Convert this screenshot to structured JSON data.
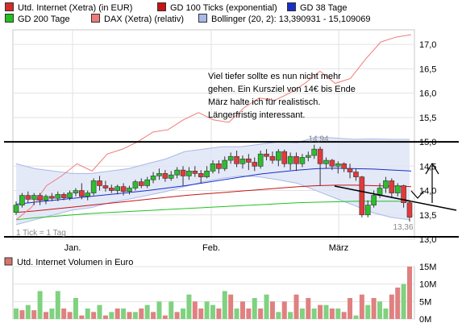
{
  "legend": [
    {
      "label": "Utd. Internet (Xetra) (in EUR)",
      "color": "#d42b2b"
    },
    {
      "label": "GD 100 Ticks (exponential)",
      "color": "#c81414"
    },
    {
      "label": "GD 38 Tage",
      "color": "#1a2fc8"
    },
    {
      "label": "GD 200 Tage",
      "color": "#22c022"
    },
    {
      "label": "DAX (Xetra) (relativ)",
      "color": "#f07a7a"
    },
    {
      "label": "Bollinger (20, 2): 13,390931 - 15,109069",
      "color": "#a9b8e8"
    }
  ],
  "annotation": "Viel tiefer sollte es nun nicht mehr gehen. Ein Kursziel von 14€ bis Ende März halte ich für realistisch. Längerfristig interessant.",
  "footnote": "1 Tick = 1 Tag",
  "volume_legend": "Utd. Internet Volumen in Euro",
  "chart_data": [
    {
      "type": "candlestick",
      "ylim": [
        13.0,
        17.3
      ],
      "y_ticks": [
        "17,0",
        "16,5",
        "16,0",
        "15,5",
        "15,0",
        "14,5",
        "14,0",
        "13,5",
        "13,0"
      ],
      "x_ticks": [
        "Jan.",
        "Feb.",
        "März"
      ],
      "high_label": "14,94",
      "low_label": "13,36",
      "candles": [
        {
          "o": 13.55,
          "c": 13.7,
          "h": 13.78,
          "l": 13.5
        },
        {
          "o": 13.7,
          "c": 13.9,
          "h": 13.95,
          "l": 13.65
        },
        {
          "o": 13.9,
          "c": 13.82,
          "h": 13.98,
          "l": 13.75
        },
        {
          "o": 13.82,
          "c": 13.9,
          "h": 13.95,
          "l": 13.7
        },
        {
          "o": 13.9,
          "c": 13.8,
          "h": 13.95,
          "l": 13.7
        },
        {
          "o": 13.8,
          "c": 13.88,
          "h": 13.92,
          "l": 13.72
        },
        {
          "o": 13.88,
          "c": 13.84,
          "h": 13.95,
          "l": 13.78
        },
        {
          "o": 13.84,
          "c": 13.92,
          "h": 13.98,
          "l": 13.78
        },
        {
          "o": 13.92,
          "c": 13.85,
          "h": 13.96,
          "l": 13.8
        },
        {
          "o": 13.85,
          "c": 13.95,
          "h": 14.0,
          "l": 13.8
        },
        {
          "o": 13.95,
          "c": 14.0,
          "h": 14.05,
          "l": 13.88
        },
        {
          "o": 14.0,
          "c": 13.88,
          "h": 14.15,
          "l": 13.82
        },
        {
          "o": 13.88,
          "c": 13.95,
          "h": 14.0,
          "l": 13.8
        },
        {
          "o": 13.95,
          "c": 14.2,
          "h": 14.25,
          "l": 13.9
        },
        {
          "o": 14.2,
          "c": 14.1,
          "h": 14.3,
          "l": 14.0
        },
        {
          "o": 14.1,
          "c": 14.05,
          "h": 14.2,
          "l": 13.98
        },
        {
          "o": 14.05,
          "c": 14.0,
          "h": 14.12,
          "l": 13.95
        },
        {
          "o": 14.0,
          "c": 14.08,
          "h": 14.12,
          "l": 13.92
        },
        {
          "o": 14.08,
          "c": 13.98,
          "h": 14.15,
          "l": 13.9
        },
        {
          "o": 13.98,
          "c": 14.05,
          "h": 14.1,
          "l": 13.92
        },
        {
          "o": 14.05,
          "c": 14.18,
          "h": 14.22,
          "l": 14.0
        },
        {
          "o": 14.18,
          "c": 14.1,
          "h": 14.25,
          "l": 14.05
        },
        {
          "o": 14.1,
          "c": 14.22,
          "h": 14.28,
          "l": 14.05
        },
        {
          "o": 14.22,
          "c": 14.3,
          "h": 14.38,
          "l": 14.15
        },
        {
          "o": 14.3,
          "c": 14.35,
          "h": 14.45,
          "l": 14.22
        },
        {
          "o": 14.35,
          "c": 14.25,
          "h": 14.42,
          "l": 14.18
        },
        {
          "o": 14.25,
          "c": 14.32,
          "h": 14.4,
          "l": 14.2
        },
        {
          "o": 14.32,
          "c": 14.42,
          "h": 14.48,
          "l": 14.25
        },
        {
          "o": 14.42,
          "c": 14.3,
          "h": 14.5,
          "l": 14.1
        },
        {
          "o": 14.3,
          "c": 14.4,
          "h": 14.48,
          "l": 14.22
        },
        {
          "o": 14.4,
          "c": 14.35,
          "h": 14.5,
          "l": 14.28
        },
        {
          "o": 14.35,
          "c": 14.28,
          "h": 14.42,
          "l": 14.15
        },
        {
          "o": 14.28,
          "c": 14.4,
          "h": 14.5,
          "l": 14.25
        },
        {
          "o": 14.4,
          "c": 14.55,
          "h": 14.62,
          "l": 14.35
        },
        {
          "o": 14.55,
          "c": 14.45,
          "h": 14.62,
          "l": 14.35
        },
        {
          "o": 14.45,
          "c": 14.62,
          "h": 14.7,
          "l": 14.4
        },
        {
          "o": 14.62,
          "c": 14.7,
          "h": 14.78,
          "l": 14.55
        },
        {
          "o": 14.7,
          "c": 14.55,
          "h": 14.82,
          "l": 14.48
        },
        {
          "o": 14.55,
          "c": 14.65,
          "h": 14.72,
          "l": 14.45
        },
        {
          "o": 14.65,
          "c": 14.58,
          "h": 14.75,
          "l": 14.42
        },
        {
          "o": 14.58,
          "c": 14.5,
          "h": 14.68,
          "l": 14.4
        },
        {
          "o": 14.5,
          "c": 14.75,
          "h": 14.82,
          "l": 14.45
        },
        {
          "o": 14.75,
          "c": 14.7,
          "h": 14.85,
          "l": 14.62
        },
        {
          "o": 14.7,
          "c": 14.62,
          "h": 14.8,
          "l": 14.55
        },
        {
          "o": 14.62,
          "c": 14.8,
          "h": 14.85,
          "l": 14.5
        },
        {
          "o": 14.8,
          "c": 14.55,
          "h": 14.84,
          "l": 14.48
        },
        {
          "o": 14.55,
          "c": 14.7,
          "h": 14.78,
          "l": 14.42
        },
        {
          "o": 14.7,
          "c": 14.55,
          "h": 14.78,
          "l": 14.4
        },
        {
          "o": 14.55,
          "c": 14.68,
          "h": 14.75,
          "l": 14.48
        },
        {
          "o": 14.68,
          "c": 14.72,
          "h": 14.8,
          "l": 14.6
        },
        {
          "o": 14.72,
          "c": 14.85,
          "h": 14.94,
          "l": 14.65
        },
        {
          "o": 14.85,
          "c": 14.55,
          "h": 14.9,
          "l": 14.1
        },
        {
          "o": 14.55,
          "c": 14.62,
          "h": 14.68,
          "l": 14.45
        },
        {
          "o": 14.62,
          "c": 14.5,
          "h": 14.65,
          "l": 14.42
        },
        {
          "o": 14.5,
          "c": 14.55,
          "h": 14.6,
          "l": 14.35
        },
        {
          "o": 14.55,
          "c": 14.45,
          "h": 14.58,
          "l": 14.38
        },
        {
          "o": 14.45,
          "c": 14.38,
          "h": 14.55,
          "l": 14.25
        },
        {
          "o": 14.38,
          "c": 14.28,
          "h": 14.45,
          "l": 14.2
        },
        {
          "o": 14.28,
          "c": 13.5,
          "h": 14.3,
          "l": 13.45
        },
        {
          "o": 13.5,
          "c": 13.7,
          "h": 13.8,
          "l": 13.45
        },
        {
          "o": 13.7,
          "c": 13.9,
          "h": 14.0,
          "l": 13.65
        },
        {
          "o": 13.9,
          "c": 14.05,
          "h": 14.15,
          "l": 13.85
        },
        {
          "o": 14.05,
          "c": 14.2,
          "h": 14.28,
          "l": 13.95
        },
        {
          "o": 14.2,
          "c": 13.95,
          "h": 14.25,
          "l": 13.85
        },
        {
          "o": 13.95,
          "c": 14.1,
          "h": 14.15,
          "l": 13.88
        },
        {
          "o": 14.1,
          "c": 13.75,
          "h": 14.12,
          "l": 13.65
        },
        {
          "o": 13.75,
          "c": 13.45,
          "h": 13.8,
          "l": 13.36
        }
      ],
      "series": [
        {
          "name": "GD 38 Tage",
          "color": "#1a2fc8",
          "values": [
            13.72,
            13.76,
            13.8,
            13.84,
            13.88,
            13.92,
            13.96,
            14.0,
            14.05,
            14.1,
            14.16,
            14.22,
            14.28,
            14.34,
            14.38,
            14.42,
            14.45,
            14.46,
            14.45,
            14.44,
            14.42,
            14.4
          ]
        },
        {
          "name": "GD 100 Ticks (exponential)",
          "color": "#c81414",
          "values": [
            13.55,
            13.58,
            13.62,
            13.66,
            13.7,
            13.74,
            13.78,
            13.82,
            13.86,
            13.9,
            13.93,
            13.96,
            13.99,
            14.02,
            14.05,
            14.08,
            14.1,
            14.11,
            14.11,
            14.1,
            14.09,
            14.08
          ]
        },
        {
          "name": "GD 200 Tage",
          "color": "#22c022",
          "values": [
            13.4,
            13.44,
            13.47,
            13.5,
            13.53,
            13.55,
            13.57,
            13.59,
            13.61,
            13.63,
            13.65,
            13.67,
            13.69,
            13.71,
            13.73,
            13.75,
            13.76,
            13.77,
            13.78,
            13.78,
            13.78,
            13.78
          ]
        },
        {
          "name": "DAX (Xetra) (relativ)",
          "color": "#f07a7a",
          "values": [
            13.4,
            13.65,
            14.1,
            14.3,
            14.55,
            14.4,
            14.75,
            14.85,
            15.0,
            15.2,
            15.25,
            15.45,
            15.6,
            15.45,
            15.4,
            15.7,
            15.9,
            15.85,
            16.0,
            16.2,
            16.45,
            16.2,
            16.3,
            16.7,
            17.05,
            17.15,
            17.2
          ]
        }
      ],
      "bollinger_upper": [
        14.55,
        14.45,
        14.4,
        14.35,
        14.35,
        14.4,
        14.45,
        14.55,
        14.65,
        14.8,
        14.85,
        14.9,
        14.9,
        14.95,
        15.0,
        14.98,
        15.1,
        15.08,
        15.05,
        15.06,
        15.05,
        15.05
      ],
      "bollinger_lower": [
        13.3,
        13.4,
        13.5,
        13.6,
        13.65,
        13.75,
        13.82,
        13.9,
        13.98,
        14.08,
        14.18,
        14.25,
        14.3,
        14.28,
        14.22,
        14.15,
        14.0,
        13.85,
        13.7,
        13.55,
        13.45,
        13.4
      ],
      "support_resistance": [
        15.0,
        13.05
      ]
    },
    {
      "type": "bar",
      "title": "Utd. Internet Volumen in Euro",
      "ylim": [
        0,
        15
      ],
      "y_ticks": [
        "15M",
        "10M",
        "5M",
        "0M"
      ],
      "values": [
        3,
        2.5,
        4,
        2.5,
        8,
        2,
        3,
        8,
        3,
        2,
        6,
        1,
        3,
        2,
        4,
        1,
        2,
        3,
        3,
        2,
        2,
        3,
        4,
        2,
        5,
        1,
        5,
        2,
        3,
        7,
        5,
        3,
        5,
        4,
        3,
        8,
        7,
        3,
        5,
        3,
        6,
        3,
        7,
        5,
        2,
        5,
        2,
        7,
        3,
        6,
        3,
        4,
        4,
        3,
        3,
        2,
        6,
        1,
        7,
        4,
        6,
        5,
        3,
        7,
        9,
        10,
        15
      ],
      "colors": [
        "g",
        "r",
        "g",
        "r",
        "g",
        "r",
        "g",
        "g",
        "r",
        "r",
        "g",
        "r",
        "g",
        "r",
        "g",
        "r",
        "g",
        "r",
        "g",
        "r",
        "g",
        "r",
        "g",
        "r",
        "g",
        "r",
        "g",
        "r",
        "g",
        "g",
        "r",
        "r",
        "g",
        "g",
        "r",
        "g",
        "r",
        "g",
        "r",
        "r",
        "g",
        "r",
        "g",
        "r",
        "g",
        "r",
        "g",
        "r",
        "g",
        "r",
        "g",
        "r",
        "g",
        "r",
        "g",
        "r",
        "r",
        "g",
        "r",
        "g",
        "r",
        "g",
        "g",
        "r",
        "r",
        "g",
        "r"
      ]
    }
  ]
}
